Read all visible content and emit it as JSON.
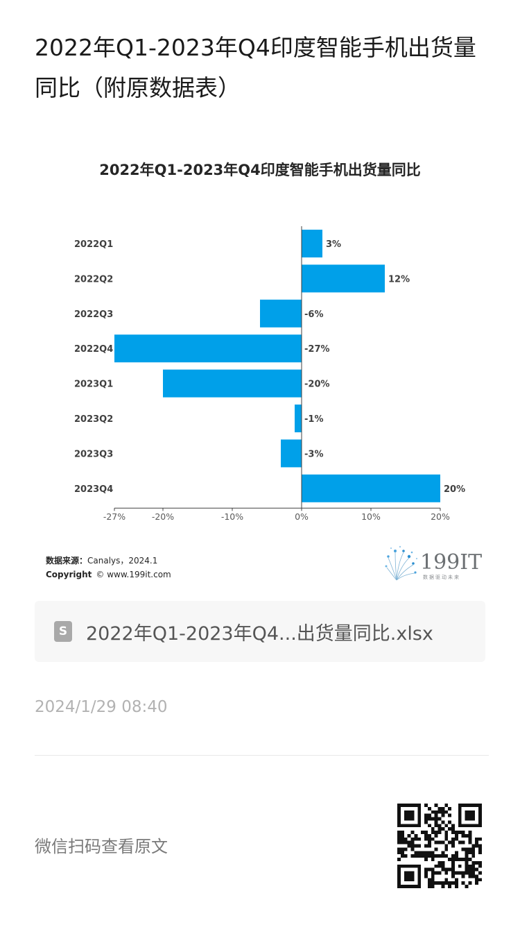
{
  "article": {
    "title": "2022年Q1-2023年Q4印度智能手机出货量同比（附原数据表）"
  },
  "chart_data": {
    "type": "bar",
    "orientation": "horizontal",
    "title": "2022年Q1-2023年Q4印度智能手机出货量同比",
    "categories": [
      "2022Q1",
      "2022Q2",
      "2022Q3",
      "2022Q4",
      "2023Q1",
      "2023Q2",
      "2023Q3",
      "2023Q4"
    ],
    "values": [
      3,
      12,
      -6,
      -27,
      -20,
      -1,
      -3,
      20
    ],
    "data_labels": [
      "3%",
      "12%",
      "-6%",
      "-27%",
      "-20%",
      "-1%",
      "-3%",
      "20%"
    ],
    "xlim": [
      -27,
      20
    ],
    "xticks": [
      -27,
      -20,
      -10,
      0,
      10,
      20
    ],
    "xtick_labels": [
      "-27%",
      "-20%",
      "-10%",
      "0%",
      "10%",
      "20%"
    ],
    "xlabel": "",
    "ylabel": "",
    "grid": false,
    "bar_color": "#00a0e9"
  },
  "chart_footer": {
    "source_label": "数据来源：",
    "source_value": "Canalys，2024.1",
    "copyright_label": "Copyright",
    "copyright_value": "© www.199it.com",
    "logo_text": "199IT",
    "logo_subtext": "数据驱动未来"
  },
  "attachment": {
    "icon": "spreadsheet-file-icon",
    "icon_letter": "S",
    "file_name": "2022年Q1-2023年Q4...出货量同比.xlsx"
  },
  "meta": {
    "timestamp": "2024/1/29 08:40",
    "wechat_text": "微信扫码查看原文"
  }
}
